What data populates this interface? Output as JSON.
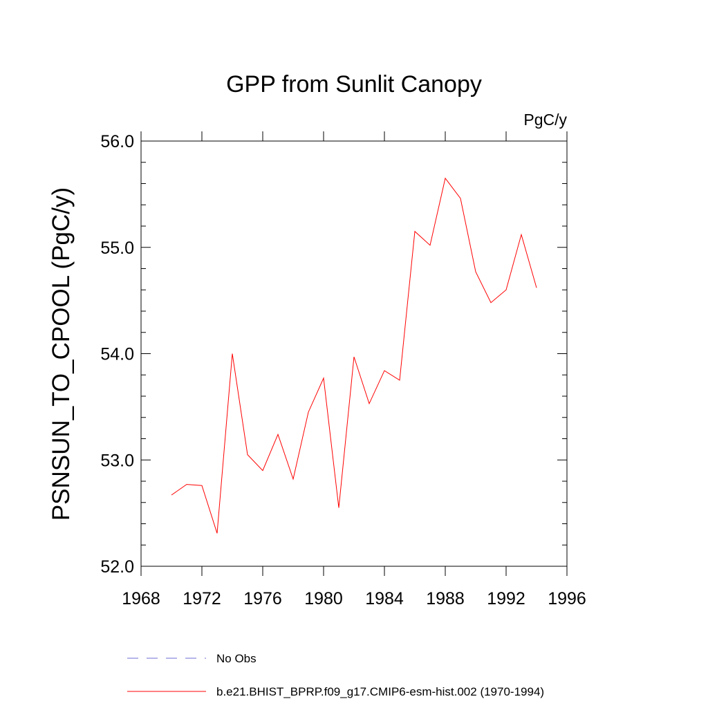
{
  "chart_data": {
    "type": "line",
    "title": "GPP from Sunlit Canopy",
    "units_label": "PgC/y",
    "ylabel": "PSNSUN_TO_CPOOL  (PgC/y)",
    "xlabel": "",
    "xlim": [
      1968,
      1996
    ],
    "ylim": [
      52.0,
      56.0
    ],
    "x_ticks": [
      "1968",
      "1972",
      "1976",
      "1980",
      "1984",
      "1988",
      "1992",
      "1996"
    ],
    "y_ticks": [
      "52.0",
      "53.0",
      "54.0",
      "55.0",
      "56.0"
    ],
    "grid": false,
    "legend_position": "bottom",
    "series": [
      {
        "name": "No Obs",
        "color": "#6b6bd6",
        "style": "dashed",
        "x": [],
        "y": []
      },
      {
        "name": "b.e21.BHIST_BPRP.f09_g17.CMIP6-esm-hist.002 (1970-1994)",
        "color": "#ff0000",
        "style": "solid",
        "x": [
          1970,
          1971,
          1972,
          1973,
          1974,
          1975,
          1976,
          1977,
          1978,
          1979,
          1980,
          1981,
          1982,
          1983,
          1984,
          1985,
          1986,
          1987,
          1988,
          1989,
          1990,
          1991,
          1992,
          1993,
          1994
        ],
        "y": [
          52.67,
          52.77,
          52.76,
          52.31,
          54.0,
          53.05,
          52.9,
          53.24,
          52.82,
          53.45,
          53.77,
          52.55,
          53.97,
          53.53,
          53.84,
          53.75,
          55.15,
          55.02,
          55.65,
          55.46,
          54.77,
          54.48,
          54.6,
          55.12,
          54.62
        ]
      }
    ]
  }
}
